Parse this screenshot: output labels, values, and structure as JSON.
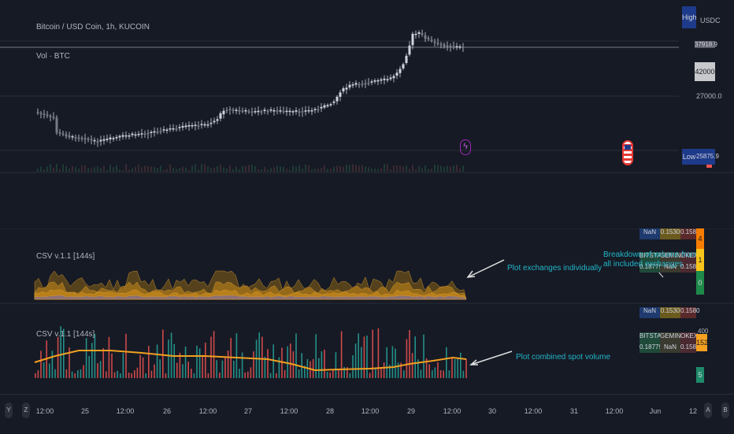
{
  "main_chart": {
    "title": "Bitcoin / USD Coin, 1h, KUCOIN",
    "vol_label": "Vol · BTC",
    "currency": "USDC",
    "price_labels": [
      "37918.9",
      "42000",
      "27000.0"
    ],
    "high_tag": "High",
    "low_tag": "Low",
    "low_value": "25875.9",
    "flash_icon": "lightning-icon",
    "flag_icon": "us-flag-icon"
  },
  "pane1": {
    "label": "CSV v.1.1 [144s]",
    "annotation": "Plot exchanges individually",
    "breakdown_annotation_line1": "Breakdown of volume from",
    "breakdown_annotation_line2": "all included exchanges",
    "table_top": [
      "NaN",
      "0.1530",
      "0.1580"
    ],
    "table_row": [
      "BITSTAMP",
      "GEMINI",
      "OKEX"
    ],
    "table_vals": [
      "0.18779",
      "NaN",
      "0.15811"
    ],
    "side_tags": [
      "4",
      "1",
      "0"
    ]
  },
  "pane2": {
    "label": "CSV v.1.1 [144s]",
    "annotation": "Plot combined spot volume",
    "table_top": [
      "NaN",
      "0.1530",
      "0.1580"
    ],
    "table_row": [
      "BITSTAMP",
      "GEMINI",
      "OKEX"
    ],
    "table_vals": [
      "0.18779",
      "NaN",
      "0.15811"
    ],
    "side_tags": [
      "400",
      "152",
      "5"
    ]
  },
  "time_axis": [
    "12:00",
    "25",
    "12:00",
    "26",
    "12:00",
    "27",
    "12:00",
    "28",
    "12:00",
    "29",
    "12:00",
    "30",
    "12:00",
    "31",
    "12:00",
    "Jun",
    "12"
  ],
  "axis_buttons": [
    "Y",
    "Z",
    "A",
    "B"
  ],
  "colors": {
    "background": "#161a25",
    "candle": "#d1d4dc",
    "volume_orange": "#c7891c",
    "line_orange": "#f0a020",
    "up_teal": "#26a69a",
    "down_red": "#ef5350",
    "annotation_cyan": "#22b5c8",
    "high_tag_bg": "#1e3a8a"
  }
}
